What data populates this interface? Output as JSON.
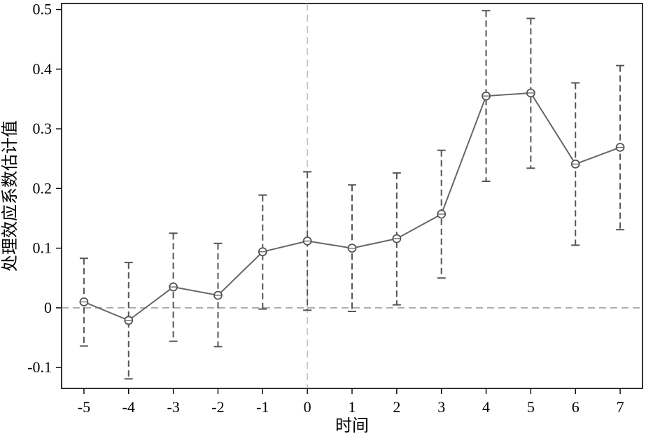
{
  "chart_data": {
    "type": "line",
    "title": "",
    "xlabel": "时间",
    "ylabel": "处理效应系数估计值",
    "xlim": [
      -5.5,
      7.5
    ],
    "ylim": [
      -0.135,
      0.51
    ],
    "x_ticks": [
      "-5",
      "-4",
      "-3",
      "-2",
      "-1",
      "0",
      "1",
      "2",
      "3",
      "4",
      "5",
      "6",
      "7"
    ],
    "y_ticks": [
      "-0.1",
      "0",
      "0.1",
      "0.2",
      "0.3",
      "0.4",
      "0.5"
    ],
    "x": [
      -5,
      -4,
      -3,
      -2,
      -1,
      0,
      1,
      2,
      3,
      4,
      5,
      6,
      7
    ],
    "series": [
      {
        "values": [
          0.01,
          -0.021,
          0.035,
          0.021,
          0.094,
          0.112,
          0.1,
          0.116,
          0.157,
          0.355,
          0.36,
          0.241,
          0.269
        ],
        "ci_lower": [
          -0.064,
          -0.119,
          -0.056,
          -0.065,
          -0.002,
          -0.004,
          -0.006,
          0.005,
          0.05,
          0.212,
          0.234,
          0.105,
          0.131
        ],
        "ci_upper": [
          0.083,
          0.076,
          0.125,
          0.108,
          0.189,
          0.228,
          0.206,
          0.226,
          0.264,
          0.498,
          0.485,
          0.377,
          0.406
        ]
      }
    ],
    "reference_lines": {
      "x": 0,
      "y": 0
    },
    "grid": false,
    "legend": "none",
    "colors": {
      "line": "#666666",
      "ci": "#555555",
      "reference": "#999999",
      "marker": "#555555"
    }
  }
}
